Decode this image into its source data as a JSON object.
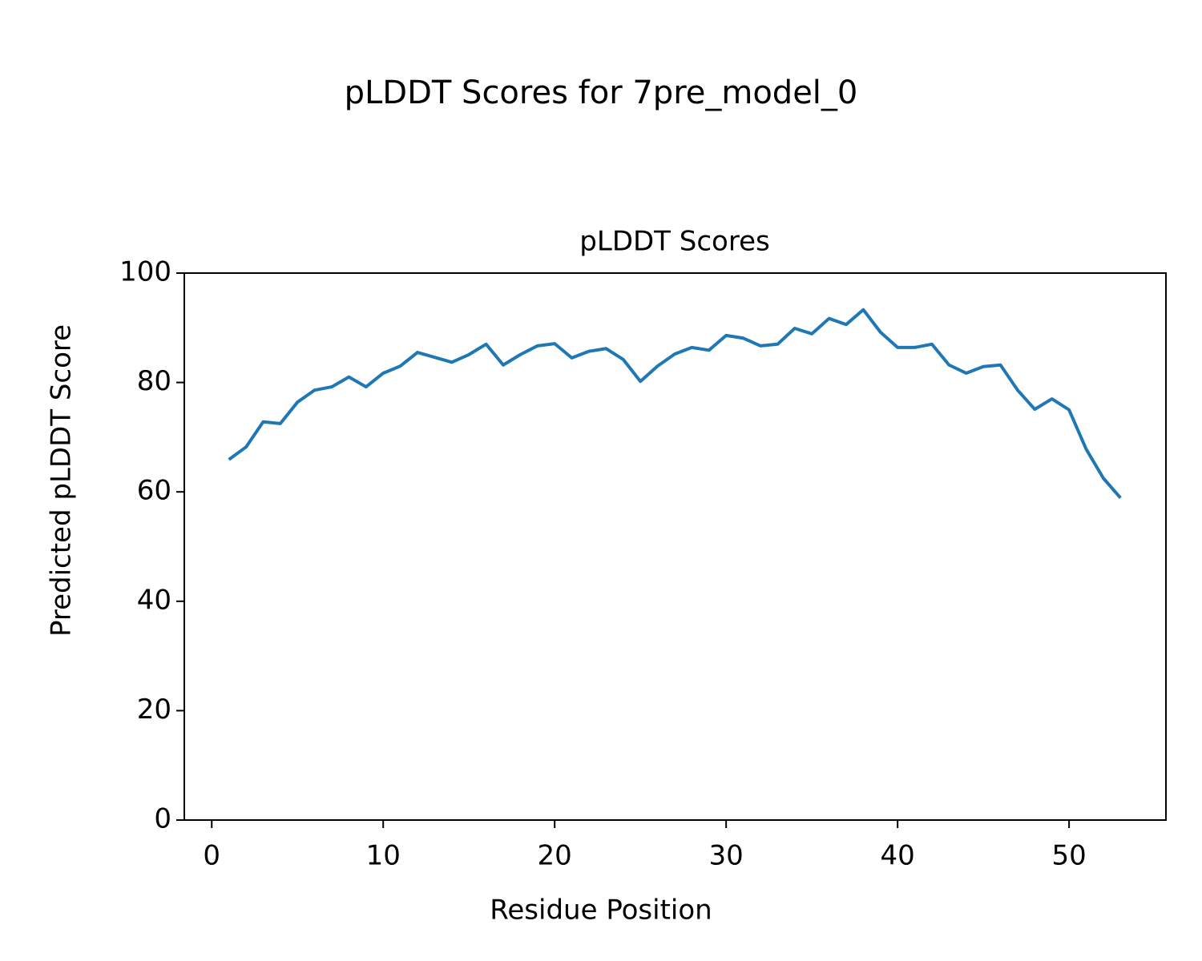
{
  "chart_data": {
    "type": "line",
    "suptitle": "pLDDT Scores for 7pre_model_0",
    "title": "pLDDT Scores",
    "xlabel": "Residue Position",
    "ylabel": "Predicted pLDDT Score",
    "x": [
      1,
      2,
      3,
      4,
      5,
      6,
      7,
      8,
      9,
      10,
      11,
      12,
      13,
      14,
      15,
      16,
      17,
      18,
      19,
      20,
      21,
      22,
      23,
      24,
      25,
      26,
      27,
      28,
      29,
      30,
      31,
      32,
      33,
      34,
      35,
      36,
      37,
      38,
      39,
      40,
      41,
      42,
      43,
      44,
      45,
      46,
      47,
      48,
      49,
      50,
      51,
      52,
      53
    ],
    "series": [
      {
        "color": "#1f77b4",
        "values": [
          65.9,
          68.2,
          72.8,
          72.5,
          76.4,
          78.6,
          79.2,
          81.0,
          79.2,
          81.7,
          83.0,
          85.5,
          84.6,
          83.7,
          85.1,
          87.0,
          83.2,
          85.1,
          86.7,
          87.1,
          84.5,
          85.7,
          86.2,
          84.2,
          80.2,
          83.0,
          85.2,
          86.4,
          85.9,
          88.6,
          88.1,
          86.7,
          87.0,
          89.9,
          88.9,
          91.7,
          90.6,
          93.3,
          89.2,
          86.4,
          86.4,
          87.0,
          83.2,
          81.7,
          82.9,
          83.2,
          78.6,
          75.1,
          77.0,
          75.0,
          67.8,
          62.5,
          58.9
        ]
      }
    ],
    "xlim": [
      -1.6,
      55.65
    ],
    "xticks": [
      0,
      10,
      20,
      30,
      40,
      50
    ],
    "ylim": [
      0,
      100
    ],
    "yticks": [
      0,
      20,
      40,
      60,
      80,
      100
    ],
    "grid": false
  }
}
